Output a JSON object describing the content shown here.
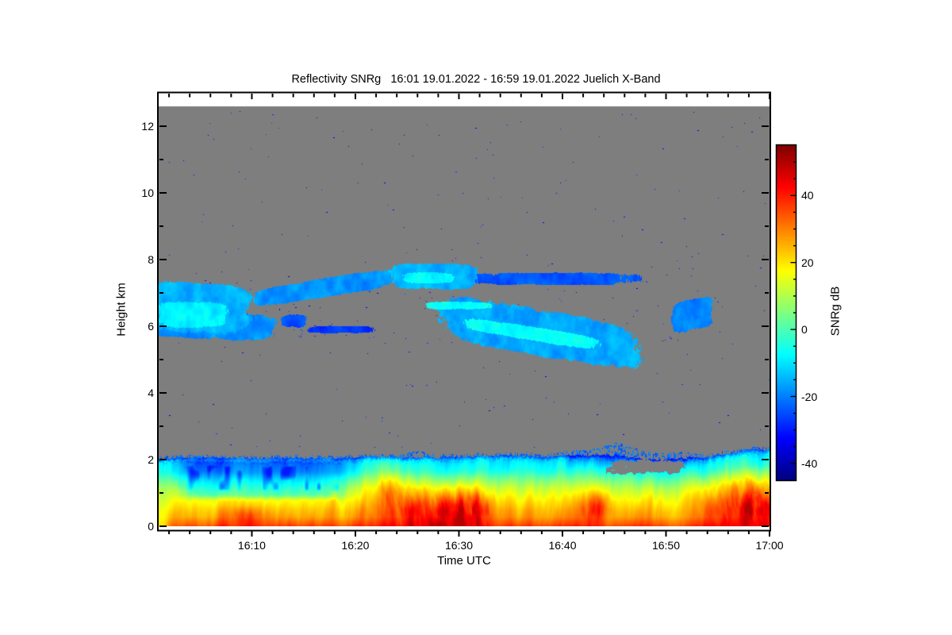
{
  "chart_data": {
    "type": "heatmap",
    "title": "Reflectivity SNRg   16:01 19.01.2022 - 16:59 19.01.2022 Juelich X-Band",
    "xlabel": "Time UTC",
    "ylabel": "Height km",
    "time_start": "16:01 19.01.2022",
    "time_end": "16:59 19.01.2022",
    "station": "Juelich X-Band",
    "x_axis": {
      "unit": "minutes after 16:00",
      "min": 1,
      "max": 60,
      "major_tick_every_min": 10,
      "minor_tick_every_min": 2,
      "ticks": [
        {
          "label": "16:10",
          "minute": 10
        },
        {
          "label": "16:20",
          "minute": 20
        },
        {
          "label": "16:30",
          "minute": 30
        },
        {
          "label": "16:40",
          "minute": 40
        },
        {
          "label": "16:50",
          "minute": 50
        },
        {
          "label": "17:00",
          "minute": 60
        }
      ]
    },
    "y_axis": {
      "unit": "km",
      "min": 0,
      "max": 13.0,
      "major_tick_every_km": 2,
      "minor_tick_every_km": 1,
      "ticks": [
        {
          "label": "0",
          "km": 0
        },
        {
          "label": "2",
          "km": 2
        },
        {
          "label": "4",
          "km": 4
        },
        {
          "label": "6",
          "km": 6
        },
        {
          "label": "8",
          "km": 8
        },
        {
          "label": "10",
          "km": 10
        },
        {
          "label": "12",
          "km": 12
        }
      ]
    },
    "colorbar": {
      "label": "SNRg dB",
      "min": -45,
      "max": 55,
      "colormap": "jet",
      "minor_tick_every_db": 5,
      "major_ticks": [
        {
          "label": "40",
          "value": 40
        },
        {
          "label": "20",
          "value": 20
        },
        {
          "label": "0",
          "value": 0
        },
        {
          "label": "-20",
          "value": -20
        },
        {
          "label": "-40",
          "value": -40
        }
      ]
    },
    "nodata_color": "#7e7e7e",
    "nodata_top_km": 12.6,
    "fields": {
      "upper_bands": [
        {
          "tc": 4.8,
          "tw": 5.2,
          "hc": 6.55,
          "hh": 0.72,
          "slope": -0.02,
          "v": -15
        },
        {
          "tc": 4.3,
          "tw": 3.4,
          "hc": 6.35,
          "hh": 0.38,
          "slope": 0,
          "v": -9
        },
        {
          "tc": 6.0,
          "tw": 6.2,
          "hc": 6.02,
          "hh": 0.4,
          "slope": -0.012,
          "v": -18
        },
        {
          "tc": 17.0,
          "tw": 6.8,
          "hc": 7.15,
          "hh": 0.28,
          "slope": 0.05,
          "v": -18
        },
        {
          "tc": 27.5,
          "tw": 4.2,
          "hc": 7.5,
          "hh": 0.38,
          "slope": 0,
          "v": -15
        },
        {
          "tc": 27.0,
          "tw": 2.4,
          "hc": 7.45,
          "hh": 0.16,
          "slope": 0,
          "v": -8
        },
        {
          "tc": 38.5,
          "tw": 10.5,
          "hc": 7.42,
          "hh": 0.2,
          "slope": 0,
          "v": -24,
          "thr": 0.52
        },
        {
          "tc": 38.0,
          "tw": 9.5,
          "hc": 5.8,
          "hh": 0.68,
          "slope": -0.055,
          "v": -16
        },
        {
          "tc": 37.0,
          "tw": 6.5,
          "hc": 5.78,
          "hh": 0.2,
          "slope": -0.05,
          "v": -7
        },
        {
          "tc": 30.0,
          "tw": 3.0,
          "hc": 6.62,
          "hh": 0.11,
          "slope": 0,
          "v": -7
        },
        {
          "tc": 52.6,
          "tw": 2.0,
          "hc": 6.35,
          "hh": 0.46,
          "slope": 0.06,
          "v": -20
        },
        {
          "tc": 14.0,
          "tw": 1.3,
          "hc": 6.15,
          "hh": 0.22,
          "slope": 0,
          "v": -23,
          "thr": 0.45
        },
        {
          "tc": 18.5,
          "tw": 3.5,
          "hc": 5.9,
          "hh": 0.12,
          "slope": 0,
          "v": -27,
          "thr": 0.55
        }
      ],
      "boundary_layer": {
        "top_edge_km": [
          [
            1,
            2.03
          ],
          [
            6,
            2.07
          ],
          [
            10,
            2.02
          ],
          [
            14,
            2.05
          ],
          [
            18,
            2.03
          ],
          [
            22,
            2.08
          ],
          [
            26,
            2.05
          ],
          [
            30,
            2.08
          ],
          [
            34,
            2.12
          ],
          [
            38,
            2.08
          ],
          [
            41,
            2.12
          ],
          [
            44,
            2.15
          ],
          [
            46,
            2.1
          ],
          [
            48,
            2.0
          ],
          [
            50,
            2.0
          ],
          [
            52,
            2.05
          ],
          [
            54,
            2.07
          ],
          [
            56,
            2.15
          ],
          [
            58,
            2.28
          ],
          [
            60,
            2.32
          ]
        ],
        "profile_rel_db": [
          [
            0,
            30
          ],
          [
            0.08,
            28
          ],
          [
            0.22,
            24
          ],
          [
            0.38,
            18
          ],
          [
            0.55,
            11
          ],
          [
            0.68,
            3
          ],
          [
            0.8,
            -6
          ],
          [
            0.9,
            -9
          ],
          [
            0.955,
            -13
          ],
          [
            0.985,
            -21
          ],
          [
            1,
            -25
          ]
        ],
        "column_streak_amp_db": 14,
        "cyan_zone": {
          "t0": 3.5,
          "t1": 18.5,
          "rel0": 0.42,
          "rel1": 0.96,
          "amp_db": -13
        },
        "gray_gap": {
          "t0": 44.5,
          "t1": 51.5,
          "h0": 1.6,
          "h1": 1.95
        },
        "blue_band_window": {
          "t0": 40.5,
          "t1": 53.2,
          "amp_db": -10
        },
        "red_blobs": [
          {
            "t": 9.5,
            "tw": 2.2,
            "h": 0.3,
            "hh": 0.28,
            "amp": 8
          },
          {
            "t": 23.5,
            "tw": 2.2,
            "h": 1.25,
            "hh": 0.8,
            "amp": 10
          },
          {
            "t": 27.0,
            "tw": 4.5,
            "h": 0.45,
            "hh": 0.7,
            "amp": 14
          },
          {
            "t": 31.0,
            "tw": 2.2,
            "h": 0.55,
            "hh": 0.6,
            "amp": 17
          },
          {
            "t": 43.2,
            "tw": 1.4,
            "h": 0.6,
            "hh": 0.45,
            "amp": 15
          },
          {
            "t": 57.0,
            "tw": 4.0,
            "h": 0.8,
            "hh": 0.95,
            "amp": 15
          },
          {
            "t": 59.2,
            "tw": 1.8,
            "h": 0.5,
            "hh": 0.6,
            "amp": 11
          }
        ],
        "top_fringe": {
          "base_db": -26,
          "cap_base_km": 0.07,
          "cap_windows": [
            {
              "t": 47.0,
              "tw": 6.0,
              "h": 0.16
            },
            {
              "t": 45.5,
              "tw": 1.6,
              "h": 0.14
            },
            {
              "t": 26.0,
              "tw": 1.3,
              "h": 0.12
            }
          ]
        }
      },
      "speckles": {
        "count_uniform": 230,
        "count_near_bands": 140,
        "db_min": -38,
        "db_max": -25,
        "h_min": 2.35,
        "h_max": 12.55
      }
    }
  }
}
